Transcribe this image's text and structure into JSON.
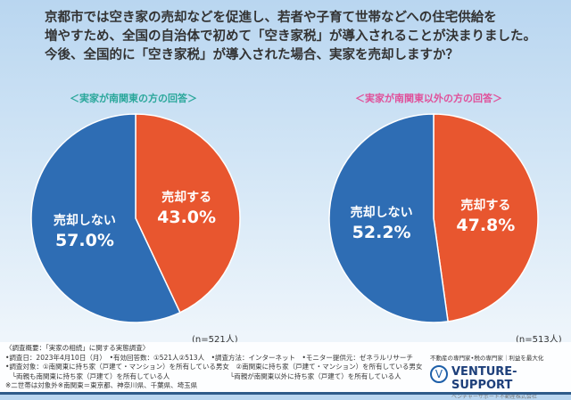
{
  "question": [
    "京都市では空き家の売却などを促進し、若者や子育て世帯などへの住宅供給を",
    "増やすため、全国の自治体で初めて「空き家税」が導入されることが決まりました。",
    "今後、全国的に「空き家税」が導入された場合、実家を売却しますか？"
  ],
  "chart_data": [
    {
      "type": "pie",
      "title": "＜実家が南関東の方の回答＞",
      "n": "(n=521人)",
      "slices": [
        {
          "label": "売却する",
          "value": 43.0,
          "display": "43.0%",
          "color": "#e8562f"
        },
        {
          "label": "売却しない",
          "value": 57.0,
          "display": "57.0%",
          "color": "#2e6db4"
        }
      ]
    },
    {
      "type": "pie",
      "title": "＜実家が南関東以外の方の回答＞",
      "n": "(n=513人)",
      "slices": [
        {
          "label": "売却する",
          "value": 47.8,
          "display": "47.8%",
          "color": "#e8562f"
        },
        {
          "label": "売却しない",
          "value": 52.2,
          "display": "52.2%",
          "color": "#2e6db4"
        }
      ]
    }
  ],
  "footer": [
    "〈調査概要：「実家の相続」に関する実態調査〉",
    "•調査日：2023年4月10日（月）　•有効回答数：①521人②513人　•調査方法：インターネット　•モニター提供元：ゼネラルリサーチ",
    "•調査対象：①南関東に持ち家（戸建て・マンション）を所有している男女　②南関東に持ち家（戸建て・マンション）を所有している男女",
    "　└両親も南関東に持ち家（戸建て）を所有している人　　　　　　　　　└両親が南関東以外に持ち家（戸建て）を所有している人",
    "※二世帯は対象外※南関東＝東京都、神奈川県、千葉県、埼玉県"
  ],
  "logo": {
    "tagline": "不動産の専門家•税の専門家｜利益を最大化",
    "name": "VENTURE-SUPPORT",
    "sub": "ベンチャーサポート不動産株式会社"
  }
}
